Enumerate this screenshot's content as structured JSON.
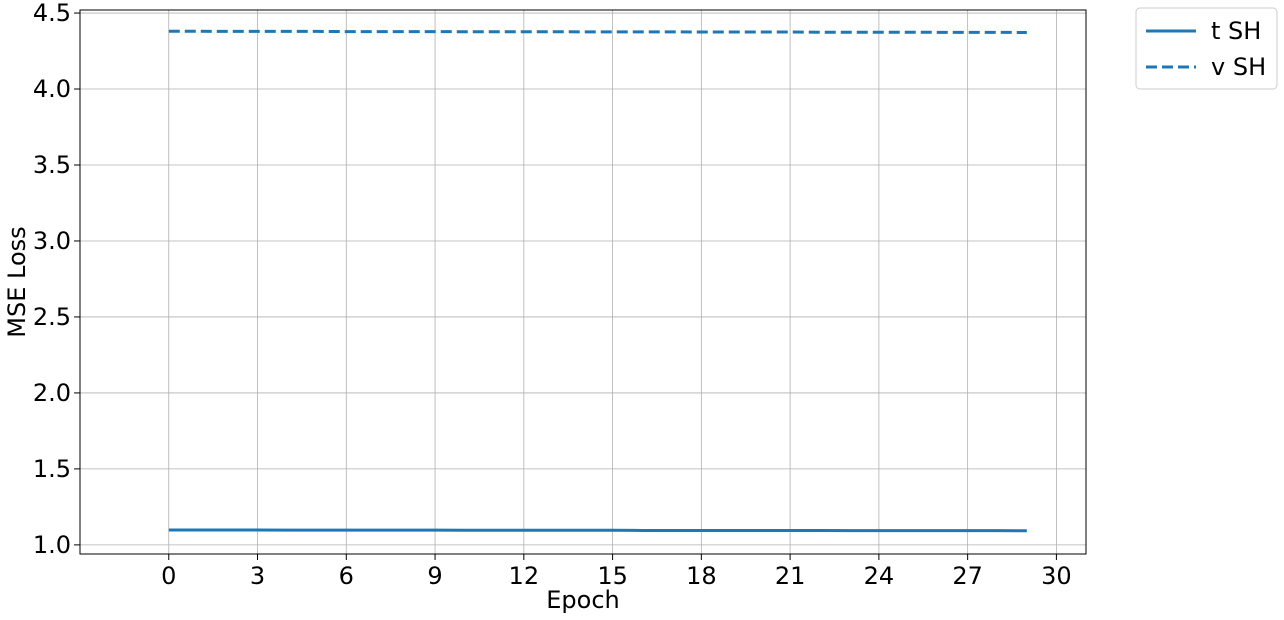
{
  "chart_data": {
    "type": "line",
    "xlabel": "Epoch",
    "ylabel": "MSE Loss",
    "xlim": [
      -3,
      31
    ],
    "ylim": [
      0.94,
      4.52
    ],
    "xticks": [
      0,
      3,
      6,
      9,
      12,
      15,
      18,
      21,
      24,
      27,
      30
    ],
    "xtick_labels": [
      "0",
      "3",
      "6",
      "9",
      "12",
      "15",
      "18",
      "21",
      "24",
      "27",
      "30"
    ],
    "yticks": [
      1.0,
      1.5,
      2.0,
      2.5,
      3.0,
      3.5,
      4.0,
      4.5
    ],
    "ytick_labels": [
      "1.0",
      "1.5",
      "2.0",
      "2.5",
      "3.0",
      "3.5",
      "4.0",
      "4.5"
    ],
    "grid": true,
    "legend_position": "outside-top-right",
    "x": [
      0,
      1,
      2,
      3,
      4,
      5,
      6,
      7,
      8,
      9,
      10,
      11,
      12,
      13,
      14,
      15,
      16,
      17,
      18,
      19,
      20,
      21,
      22,
      23,
      24,
      25,
      26,
      27,
      28,
      29
    ],
    "series": [
      {
        "name": "t SH",
        "style": "solid",
        "color": "#1f77b4",
        "values": [
          1.098,
          1.098,
          1.098,
          1.098,
          1.097,
          1.097,
          1.097,
          1.097,
          1.097,
          1.097,
          1.096,
          1.096,
          1.096,
          1.096,
          1.096,
          1.096,
          1.095,
          1.095,
          1.095,
          1.095,
          1.095,
          1.095,
          1.095,
          1.094,
          1.094,
          1.094,
          1.094,
          1.094,
          1.094,
          1.093
        ]
      },
      {
        "name": "v SH",
        "style": "dashed",
        "color": "#1f77b4",
        "values": [
          4.38,
          4.38,
          4.379,
          4.379,
          4.379,
          4.379,
          4.378,
          4.378,
          4.378,
          4.378,
          4.377,
          4.377,
          4.377,
          4.377,
          4.376,
          4.376,
          4.376,
          4.376,
          4.375,
          4.375,
          4.375,
          4.375,
          4.374,
          4.374,
          4.374,
          4.374,
          4.373,
          4.373,
          4.373,
          4.372
        ]
      }
    ]
  }
}
